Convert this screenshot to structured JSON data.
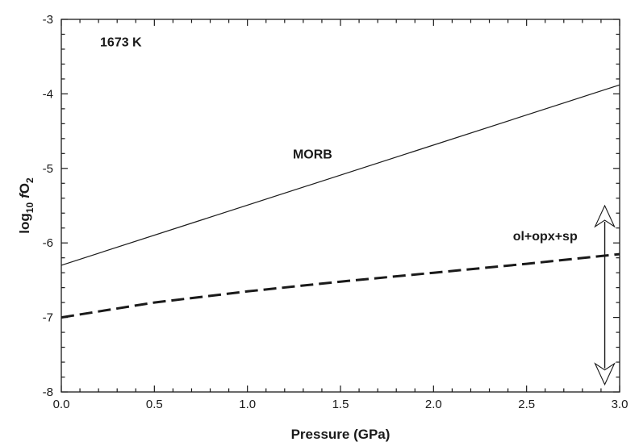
{
  "chart_data": {
    "type": "line",
    "title": "",
    "xlabel": "Pressure  (GPa)",
    "ylabel": {
      "prefix": "log",
      "subscript": "10",
      "italic": "f",
      "main": "O",
      "main_subscript": "2"
    },
    "xlim": [
      0.0,
      3.0
    ],
    "ylim": [
      -8,
      -3
    ],
    "x_ticks": [
      0.0,
      0.5,
      1.0,
      1.5,
      2.0,
      2.5,
      3.0
    ],
    "x_tick_labels": [
      "0.0",
      "0.5",
      "1.0",
      "1.5",
      "2.0",
      "2.5",
      "3.0"
    ],
    "y_ticks": [
      -8,
      -7,
      -6,
      -5,
      -4,
      -3
    ],
    "y_tick_labels": [
      "-8",
      "-7",
      "-6",
      "-5",
      "-4",
      "-3"
    ],
    "grid": false,
    "series": [
      {
        "name": "MORB",
        "style": "solid",
        "color": "#1a1a1a",
        "x": [
          0.0,
          3.0
        ],
        "y": [
          -6.3,
          -3.88
        ]
      },
      {
        "name": "ol+opx+sp",
        "style": "dashed",
        "color": "#1a1a1a",
        "x": [
          0.0,
          0.5,
          1.0,
          1.5,
          2.0,
          2.5,
          3.0
        ],
        "y": [
          -7.0,
          -6.8,
          -6.65,
          -6.52,
          -6.4,
          -6.28,
          -6.15
        ]
      }
    ],
    "annotations": [
      {
        "text": "1673 K",
        "x": 0.32,
        "y": -3.3
      },
      {
        "text": "MORB",
        "x": 1.35,
        "y": -4.8
      },
      {
        "text": "ol+opx+sp",
        "x": 2.6,
        "y": -5.9
      }
    ],
    "double_arrow": {
      "x": 2.92,
      "y_from": -5.5,
      "y_to": -7.9
    }
  }
}
